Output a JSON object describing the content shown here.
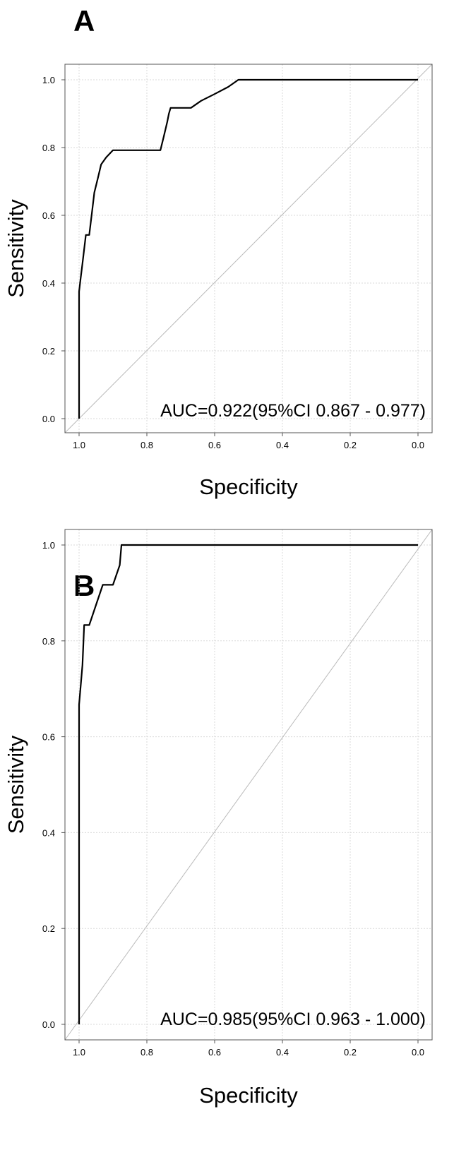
{
  "chart_data": [
    {
      "type": "line",
      "panel_label": "A",
      "xlabel": "Specificity",
      "ylabel": "Sensitivity",
      "xlim": [
        1.0,
        0.0
      ],
      "ylim": [
        0.0,
        1.0
      ],
      "x_reversed": true,
      "xticks": [
        1.0,
        0.8,
        0.6,
        0.4,
        0.2,
        0.0
      ],
      "xtick_labels": [
        "1.0",
        "0.8",
        "0.6",
        "0.4",
        "0.2",
        "0.0"
      ],
      "yticks": [
        0.0,
        0.2,
        0.4,
        0.6,
        0.8,
        1.0
      ],
      "ytick_labels": [
        "0.0",
        "0.2",
        "0.4",
        "0.6",
        "0.8",
        "1.0"
      ],
      "grid": true,
      "annotation": "AUC=0.922(95%CI 0.867 - 0.977)",
      "series": [
        {
          "color": "#000000",
          "specificity": [
            1.0,
            1.0,
            0.995,
            0.99,
            0.985,
            0.98,
            0.97,
            0.96,
            0.955,
            0.945,
            0.935,
            0.92,
            0.9,
            0.87,
            0.84,
            0.8,
            0.76,
            0.75,
            0.74,
            0.735,
            0.73,
            0.7,
            0.67,
            0.64,
            0.6,
            0.56,
            0.53,
            0.5,
            0.3,
            0.0
          ],
          "sensitivity": [
            0.0,
            0.375,
            0.417,
            0.458,
            0.5,
            0.542,
            0.542,
            0.625,
            0.667,
            0.708,
            0.75,
            0.771,
            0.792,
            0.792,
            0.792,
            0.792,
            0.792,
            0.833,
            0.875,
            0.9,
            0.917,
            0.917,
            0.917,
            0.938,
            0.958,
            0.979,
            1.0,
            1.0,
            1.0,
            1.0
          ]
        },
        {
          "color": "#bbbbbb",
          "specificity": [
            1.0,
            0.0
          ],
          "sensitivity": [
            0.0,
            1.0
          ]
        }
      ]
    },
    {
      "type": "line",
      "panel_label": "B",
      "xlabel": "Specificity",
      "ylabel": "Sensitivity",
      "xlim": [
        1.0,
        0.0
      ],
      "ylim": [
        0.0,
        1.0
      ],
      "x_reversed": true,
      "xticks": [
        1.0,
        0.8,
        0.6,
        0.4,
        0.2,
        0.0
      ],
      "xtick_labels": [
        "1.0",
        "0.8",
        "0.6",
        "0.4",
        "0.2",
        "0.0"
      ],
      "yticks": [
        0.0,
        0.2,
        0.4,
        0.6,
        0.8,
        1.0
      ],
      "ytick_labels": [
        "0.0",
        "0.2",
        "0.4",
        "0.6",
        "0.8",
        "1.0"
      ],
      "grid": true,
      "annotation": "AUC=0.985(95%CI 0.963 - 1.000)",
      "series": [
        {
          "color": "#000000",
          "specificity": [
            1.0,
            1.0,
            0.995,
            0.99,
            0.985,
            0.97,
            0.95,
            0.93,
            0.92,
            0.9,
            0.88,
            0.875,
            0.6,
            0.3,
            0.0
          ],
          "sensitivity": [
            0.0,
            0.667,
            0.708,
            0.75,
            0.833,
            0.833,
            0.875,
            0.917,
            0.917,
            0.917,
            0.958,
            1.0,
            1.0,
            1.0,
            1.0
          ]
        },
        {
          "color": "#bbbbbb",
          "specificity": [
            1.0,
            0.0
          ],
          "sensitivity": [
            0.0,
            1.0
          ]
        }
      ]
    }
  ]
}
